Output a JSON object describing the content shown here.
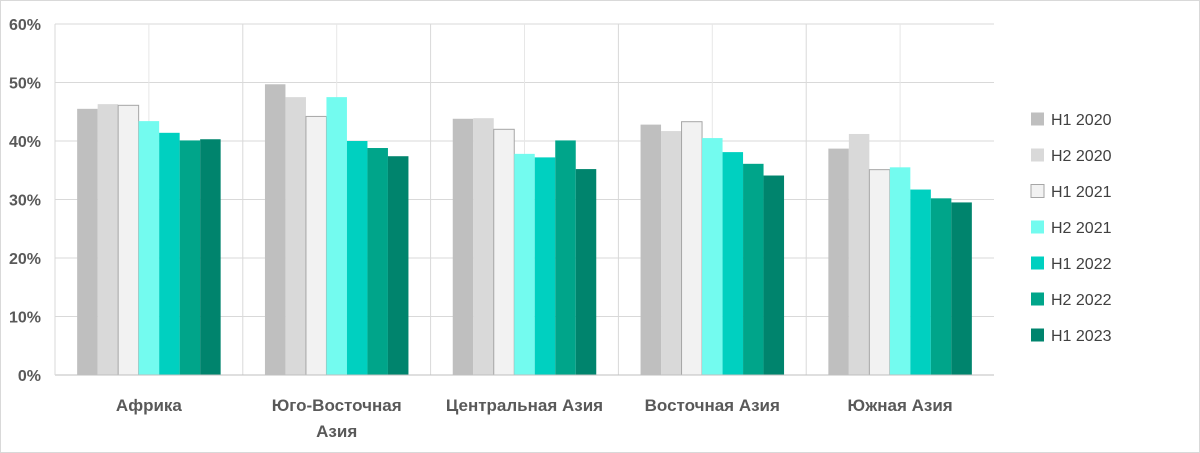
{
  "chart_data": {
    "type": "bar",
    "categories": [
      [
        "Африка"
      ],
      [
        "Юго-Восточная",
        "Азия"
      ],
      [
        "Центральная Азия"
      ],
      [
        "Восточная Азия"
      ],
      [
        "Южная Азия"
      ]
    ],
    "series": [
      {
        "name": "H1 2020",
        "color": "#bfbfbf",
        "values": [
          45.5,
          49.7,
          43.8,
          42.8,
          38.7
        ]
      },
      {
        "name": "H2 2020",
        "color": "#d9d9d9",
        "values": [
          46.3,
          47.5,
          43.9,
          41.7,
          41.2
        ]
      },
      {
        "name": "H1 2021",
        "color": "#f2f2f2",
        "outline": "#a6a6a6",
        "values": [
          46.1,
          44.2,
          42.0,
          43.3,
          35.1
        ]
      },
      {
        "name": "H2 2021",
        "color": "#73fbef",
        "values": [
          43.4,
          47.5,
          37.8,
          40.5,
          35.5
        ]
      },
      {
        "name": "H1 2022",
        "color": "#00d0c0",
        "values": [
          41.4,
          40.0,
          37.2,
          38.1,
          31.7
        ]
      },
      {
        "name": "H2 2022",
        "color": "#00a58a",
        "values": [
          40.1,
          38.8,
          40.1,
          36.1,
          30.2
        ]
      },
      {
        "name": "H1 2023",
        "color": "#00846d",
        "values": [
          40.3,
          37.4,
          35.2,
          34.1,
          29.5
        ]
      }
    ],
    "y_ticks": [
      "0%",
      "10%",
      "20%",
      "30%",
      "40%",
      "50%",
      "60%"
    ],
    "ylim": [
      0,
      60
    ],
    "grid": true,
    "legend": "right"
  }
}
